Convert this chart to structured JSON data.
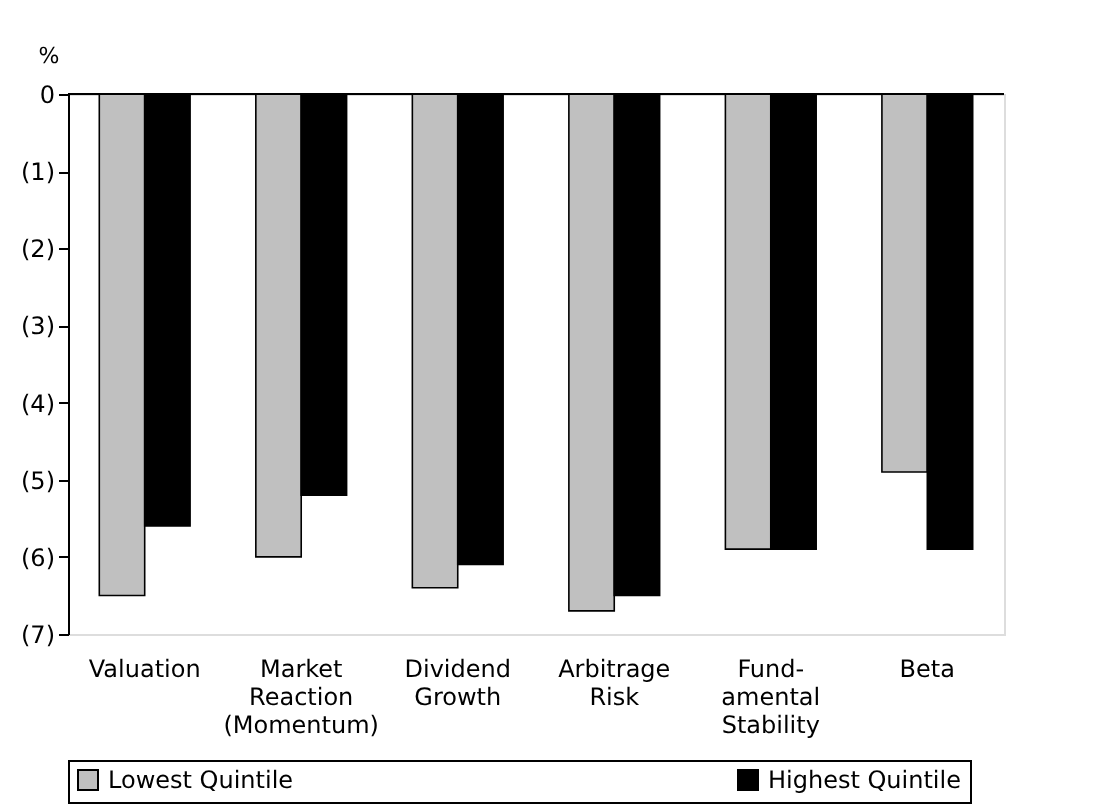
{
  "chart_data": {
    "type": "bar",
    "ylabel": "%",
    "categories": [
      "Valuation",
      "Market\nReaction\n(Momentum)",
      "Dividend\nGrowth",
      "Arbitrage\nRisk",
      "Fund-\namental\nStability",
      "Beta"
    ],
    "series": [
      {
        "name": "Lowest Quintile",
        "color": "#c0c0c0",
        "values": [
          -6.5,
          -6.0,
          -6.4,
          -6.7,
          -5.9,
          -4.9
        ]
      },
      {
        "name": "Highest Quintile",
        "color": "#000000",
        "values": [
          -5.6,
          -5.2,
          -6.1,
          -6.5,
          -5.9,
          -5.9
        ]
      }
    ],
    "ylim": [
      -7,
      0
    ],
    "yticks": [
      {
        "value": 0,
        "label": "0"
      },
      {
        "value": -1,
        "label": "(1)"
      },
      {
        "value": -2,
        "label": "(2)"
      },
      {
        "value": -3,
        "label": "(3)"
      },
      {
        "value": -4,
        "label": "(4)"
      },
      {
        "value": -5,
        "label": "(5)"
      },
      {
        "value": -6,
        "label": "(6)"
      },
      {
        "value": -7,
        "label": "(7)"
      }
    ],
    "grid": false,
    "legend": "bottom"
  }
}
